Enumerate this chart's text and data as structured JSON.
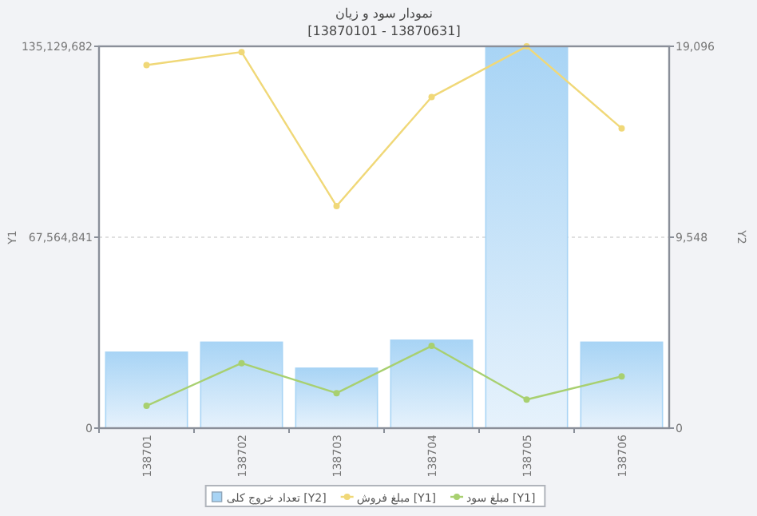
{
  "chart_data": {
    "type": "bar",
    "title": "نمودار سود و زیان",
    "subtitle": "[13870101 - 13870631]",
    "ylabel": "Y1",
    "y2label": "Y2",
    "categories": [
      "138701",
      "138702",
      "138703",
      "138704",
      "138705",
      "138706"
    ],
    "series": [
      {
        "name": "تعداد خروج کلی [Y2]",
        "axis": "y2",
        "color": "#a8d4f5",
        "values": [
          3800,
          4300,
          3000,
          4400,
          19096,
          4300
        ]
      },
      {
        "name": "مبلغ فروش [Y1]",
        "type": "line",
        "color": "#f0d878",
        "values": [
          128500000,
          133100000,
          78600000,
          117200000,
          135100000,
          106100000
        ]
      },
      {
        "name": "مبلغ سود [Y1]",
        "type": "line",
        "color": "#a8d070",
        "values": [
          7900000,
          23000000,
          12400000,
          29100000,
          10100000,
          18300000
        ]
      }
    ],
    "ylim": [
      0,
      135129682
    ],
    "yticks": [
      0,
      {
        "value": 67564841,
        "label": "67,564,841"
      },
      {
        "value": 135129682,
        "label": "135,129,682"
      }
    ],
    "y2lim": [
      0,
      19096
    ],
    "y2ticks": [
      0,
      {
        "value": 9548,
        "label": "9,548"
      },
      {
        "value": 19096,
        "label": "19,096"
      }
    ],
    "grid": "y",
    "legend": "bottom",
    "marker": "circle"
  }
}
